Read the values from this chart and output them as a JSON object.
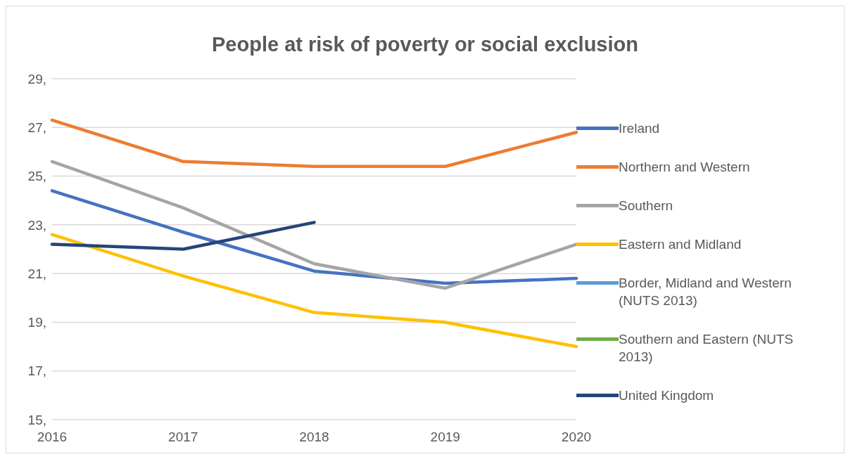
{
  "chart_data": {
    "type": "line",
    "title": "People at risk of poverty or social exclusion",
    "categories": [
      "2016",
      "2017",
      "2018",
      "2019",
      "2020"
    ],
    "series": [
      {
        "name": "Ireland",
        "color": "#4472c4",
        "values": [
          24.4,
          22.7,
          21.1,
          20.6,
          20.8
        ]
      },
      {
        "name": "Northern and Western",
        "color": "#ed7d31",
        "values": [
          27.3,
          25.6,
          25.4,
          25.4,
          26.8
        ]
      },
      {
        "name": "Southern",
        "color": "#a5a5a5",
        "values": [
          25.6,
          23.7,
          21.4,
          20.4,
          22.2
        ]
      },
      {
        "name": "Eastern and Midland",
        "color": "#ffc000",
        "values": [
          22.6,
          20.9,
          19.4,
          19.0,
          18.0
        ]
      },
      {
        "name": "Border, Midland and Western (NUTS 2013)",
        "color": "#5b9bd5",
        "values": [
          null,
          null,
          null,
          null,
          null
        ]
      },
      {
        "name": "Southern and Eastern (NUTS 2013)",
        "color": "#70ad47",
        "values": [
          null,
          null,
          null,
          null,
          null
        ]
      },
      {
        "name": "United Kingdom",
        "color": "#264478",
        "values": [
          22.2,
          22.0,
          23.1,
          null,
          null
        ]
      }
    ],
    "ylim": [
      15,
      29
    ],
    "yticks": [
      {
        "value": 15,
        "label": "15,"
      },
      {
        "value": 17,
        "label": "17,"
      },
      {
        "value": 19,
        "label": "19,"
      },
      {
        "value": 21,
        "label": "21,"
      },
      {
        "value": 23,
        "label": "23,"
      },
      {
        "value": 25,
        "label": "25,"
      },
      {
        "value": 27,
        "label": "27,"
      },
      {
        "value": 29,
        "label": "29,"
      }
    ],
    "grid": "y",
    "legend": "right",
    "marker": "none",
    "line_style": "solid"
  }
}
